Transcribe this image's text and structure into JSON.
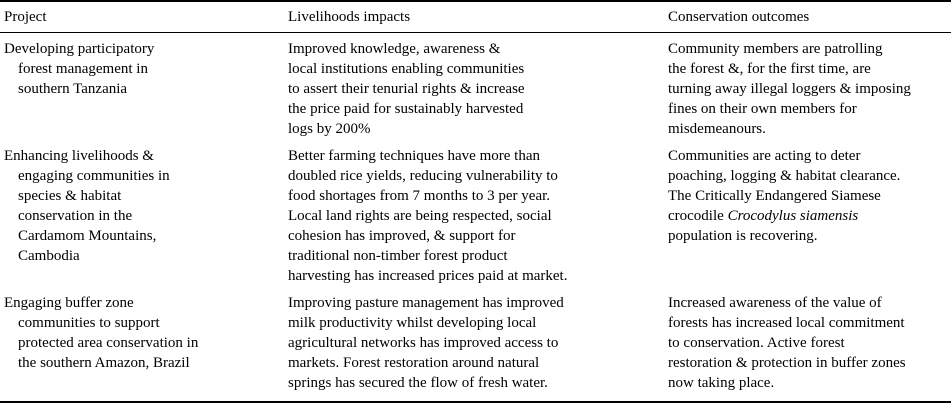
{
  "table": {
    "headers": {
      "project": "Project",
      "livelihoods": "Livelihoods impacts",
      "conservation": "Conservation outcomes"
    },
    "rows": [
      {
        "project": "Developing participatory\nforest management in\nsouthern Tanzania",
        "livelihoods": "Improved knowledge, awareness &\nlocal institutions enabling communities\nto assert their tenurial rights & increase\nthe price paid for sustainably harvested\nlogs by 200%",
        "conservation": "Community members are patrolling\nthe forest &, for the first time, are\nturning away illegal loggers & imposing\nfines on their own members for\nmisdemeanours."
      },
      {
        "project": "Enhancing livelihoods &\nengaging communities in\nspecies & habitat\nconservation in the\nCardamom Mountains,\nCambodia",
        "livelihoods": "Better farming techniques have more than\ndoubled rice yields, reducing vulnerability to\nfood shortages from 7 months to 3 per year.\nLocal land rights are being respected, social\ncohesion has improved, & support for\ntraditional non-timber forest product\nharvesting has increased prices paid at market.",
        "conservation_part1": "Communities are acting to deter\npoaching, logging & habitat clearance.\nThe Critically Endangered Siamese\ncrocodile ",
        "conservation_italic": "Crocodylus siamensis",
        "conservation_part2": "\npopulation is recovering."
      },
      {
        "project": "Engaging buffer zone\ncommunities to support\nprotected area conservation in\nthe southern Amazon, Brazil",
        "livelihoods": "Improving pasture management has improved\nmilk productivity whilst developing local\nagricultural networks has improved access to\nmarkets. Forest restoration around natural\nsprings has secured the flow of fresh water.",
        "conservation": "Increased awareness of the value of\nforests has increased local commitment\nto conservation. Active forest\nrestoration & protection in buffer zones\nnow taking place."
      }
    ]
  }
}
